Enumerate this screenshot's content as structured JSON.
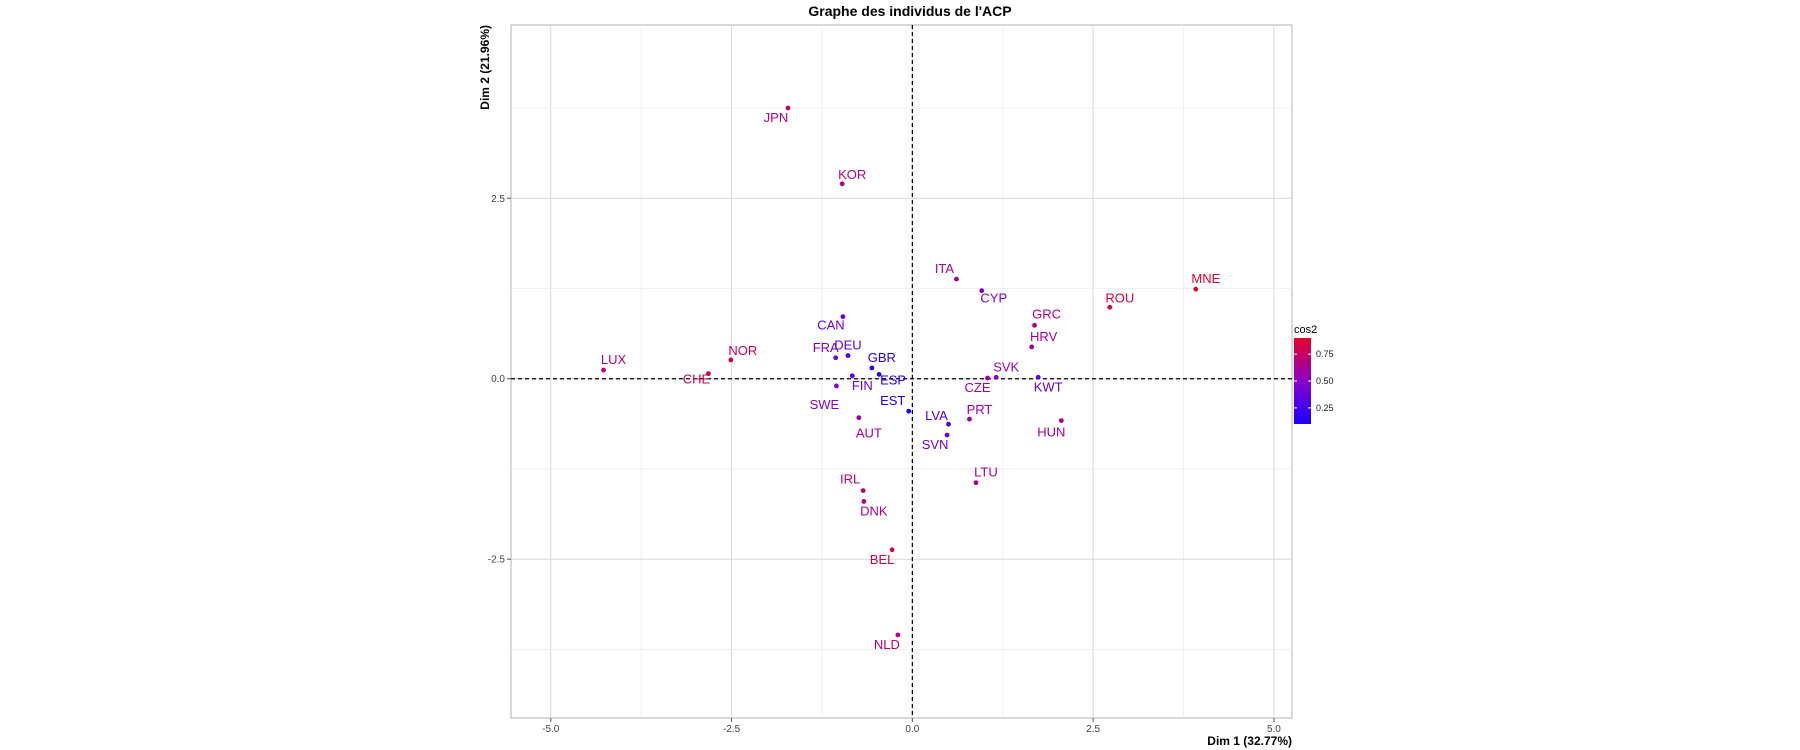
{
  "chart_data": {
    "type": "scatter",
    "title": "Graphe des individus de l'ACP",
    "xlabel": "Dim 1 (32.77%)",
    "ylabel": "Dim 2 (21.96%)",
    "xlim": [
      -5.55,
      5.25
    ],
    "ylim": [
      -4.7,
      4.9
    ],
    "x_ticks": [
      -5.0,
      -2.5,
      0.0,
      2.5,
      5.0
    ],
    "x_tick_labels": [
      "-5.0",
      "-2.5",
      "0.0",
      "2.5",
      "5.0"
    ],
    "y_ticks": [
      -2.5,
      0.0,
      2.5
    ],
    "y_tick_labels": [
      "-2.5",
      "0.0",
      "2.5"
    ],
    "grid": true,
    "reference_lines": {
      "x": 0,
      "y": 0,
      "style": "dashed"
    },
    "legend": {
      "title": "cos2",
      "placement": "right",
      "ticks": [
        0.25,
        0.5,
        0.75
      ],
      "tick_labels": [
        "0.25",
        "0.50",
        "0.75"
      ],
      "range": [
        0.1,
        0.9
      ],
      "low_color": "#1a00ff",
      "mid_color": "#8a00c8",
      "high_color": "#e8002a"
    },
    "points": [
      {
        "label": "JPN",
        "x": -1.72,
        "y": 3.75,
        "cos2": 0.7
      },
      {
        "label": "KOR",
        "x": -0.97,
        "y": 2.7,
        "cos2": 0.68
      },
      {
        "label": "ITA",
        "x": 0.61,
        "y": 1.38,
        "cos2": 0.6
      },
      {
        "label": "CYP",
        "x": 0.96,
        "y": 1.22,
        "cos2": 0.45
      },
      {
        "label": "MNE",
        "x": 3.92,
        "y": 1.24,
        "cos2": 0.9
      },
      {
        "label": "ROU",
        "x": 2.73,
        "y": 0.99,
        "cos2": 0.88
      },
      {
        "label": "GRC",
        "x": 1.69,
        "y": 0.74,
        "cos2": 0.7
      },
      {
        "label": "HRV",
        "x": 1.65,
        "y": 0.44,
        "cos2": 0.62
      },
      {
        "label": "CAN",
        "x": -0.96,
        "y": 0.86,
        "cos2": 0.4
      },
      {
        "label": "DEU",
        "x": -0.89,
        "y": 0.32,
        "cos2": 0.32
      },
      {
        "label": "GBR",
        "x": -0.56,
        "y": 0.15,
        "cos2": 0.12
      },
      {
        "label": "FRA",
        "x": -1.06,
        "y": 0.29,
        "cos2": 0.45
      },
      {
        "label": "FIN",
        "x": -0.83,
        "y": 0.04,
        "cos2": 0.38
      },
      {
        "label": "ESP",
        "x": -0.46,
        "y": 0.06,
        "cos2": 0.15
      },
      {
        "label": "NOR",
        "x": -2.51,
        "y": 0.26,
        "cos2": 0.75
      },
      {
        "label": "LUX",
        "x": -4.27,
        "y": 0.12,
        "cos2": 0.7
      },
      {
        "label": "CHE",
        "x": -2.82,
        "y": 0.07,
        "cos2": 0.8
      },
      {
        "label": "SWE",
        "x": -1.05,
        "y": -0.1,
        "cos2": 0.5
      },
      {
        "label": "SVK",
        "x": 1.16,
        "y": 0.02,
        "cos2": 0.55
      },
      {
        "label": "CZE",
        "x": 1.04,
        "y": 0.01,
        "cos2": 0.6
      },
      {
        "label": "KWT",
        "x": 1.74,
        "y": 0.02,
        "cos2": 0.35
      },
      {
        "label": "EST",
        "x": -0.05,
        "y": -0.45,
        "cos2": 0.1
      },
      {
        "label": "AUT",
        "x": -0.74,
        "y": -0.54,
        "cos2": 0.6
      },
      {
        "label": "PRT",
        "x": 0.79,
        "y": -0.56,
        "cos2": 0.58
      },
      {
        "label": "LVA",
        "x": 0.5,
        "y": -0.63,
        "cos2": 0.3
      },
      {
        "label": "SVN",
        "x": 0.48,
        "y": -0.78,
        "cos2": 0.42
      },
      {
        "label": "HUN",
        "x": 2.06,
        "y": -0.58,
        "cos2": 0.62
      },
      {
        "label": "LTU",
        "x": 0.88,
        "y": -1.44,
        "cos2": 0.65
      },
      {
        "label": "IRL",
        "x": -0.68,
        "y": -1.55,
        "cos2": 0.72
      },
      {
        "label": "DNK",
        "x": -0.67,
        "y": -1.7,
        "cos2": 0.68
      },
      {
        "label": "BEL",
        "x": -0.28,
        "y": -2.37,
        "cos2": 0.8
      },
      {
        "label": "NLD",
        "x": -0.2,
        "y": -3.55,
        "cos2": 0.72
      }
    ]
  }
}
